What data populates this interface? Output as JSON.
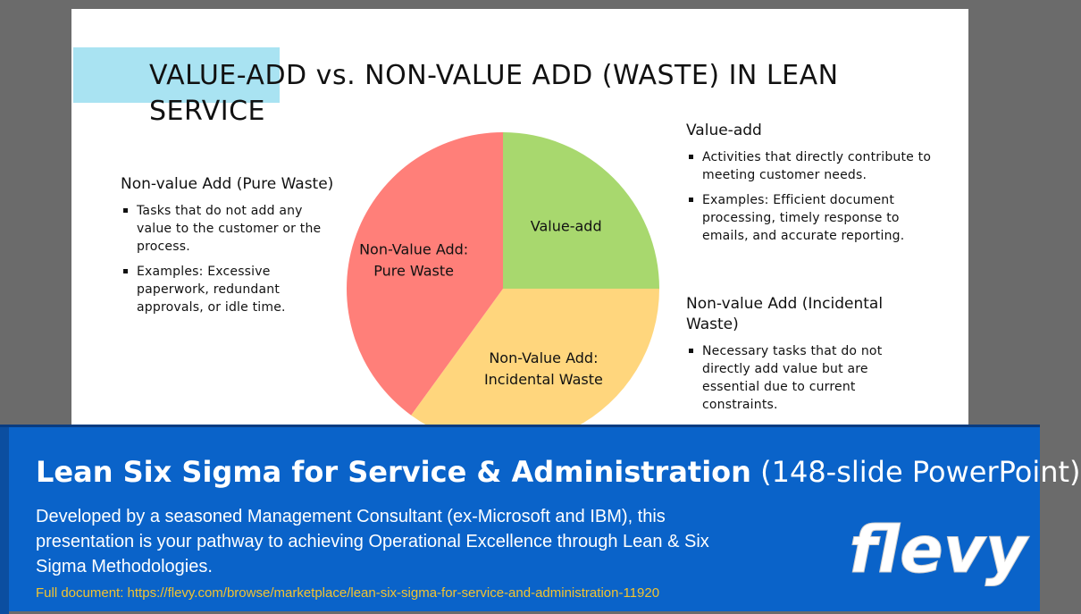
{
  "slide": {
    "title": "VALUE-ADD vs. NON-VALUE ADD (WASTE) IN LEAN SERVICE",
    "left": {
      "heading": "Non-value Add (Pure Waste)",
      "bullets": [
        "Tasks that do not add any value to the customer or the process.",
        "Examples: Excessive paperwork, redundant approvals, or idle time."
      ]
    },
    "right_top": {
      "heading": "Value-add",
      "bullets": [
        "Activities that directly contribute to meeting customer needs.",
        "Examples: Efficient document processing, timely response to emails, and accurate reporting."
      ]
    },
    "right_bottom": {
      "heading": "Non-value Add (Incidental Waste)",
      "bullets": [
        "Necessary tasks that do not directly add value but are essential due to current constraints."
      ]
    },
    "accent_color": "#a9e3f2"
  },
  "chart_data": {
    "type": "pie",
    "slices": [
      {
        "label_lines": [
          "Value-add"
        ],
        "percent": 25,
        "color": "#a8d86e"
      },
      {
        "label_lines": [
          "Non-Value Add:",
          "Incidental Waste"
        ],
        "percent": 35,
        "color": "#ffd67d"
      },
      {
        "label_lines": [
          "Non-Value Add:",
          "Pure Waste"
        ],
        "percent": 40,
        "color": "#ff7f79"
      }
    ]
  },
  "banner": {
    "title_bold": "Lean Six Sigma for Service & Administration",
    "title_light": "(148-slide PowerPoint)",
    "description": "Developed by a seasoned Management Consultant (ex-Microsoft and IBM), this presentation is your pathway to achieving Operational Excellence through Lean & Six Sigma Methodologies.",
    "link_text": "Full document: https://flevy.com/browse/marketplace/lean-six-sigma-for-service-and-administration-11920",
    "logo_text": "flevy",
    "background_color": "#0a63c9"
  }
}
